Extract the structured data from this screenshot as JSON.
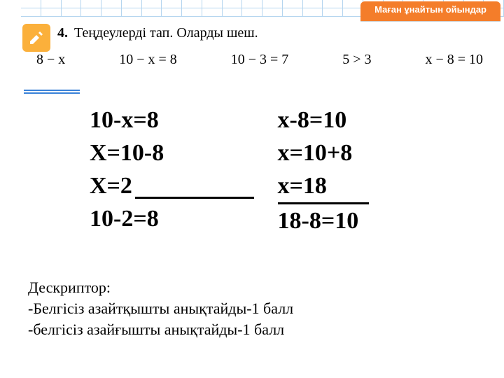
{
  "topstrip": {
    "grid_color": "#b5d5ef",
    "cell_count": 24,
    "pill_label": "Маған ұнайтын ойындар",
    "pill_bg": "#f47d2a"
  },
  "textbook": {
    "icon_bg": "#fbb03b",
    "icon_fg": "#ffffff",
    "number": "4.",
    "title": "Теңдеулерді тап. Оларды шеш.",
    "expressions": [
      "8 − x",
      "10 − x = 8",
      "10 − 3 = 7",
      "5 > 3",
      "x − 8 = 10"
    ],
    "rule_color": "#3a82d8"
  },
  "work": {
    "col1": {
      "l1": "10-х=8",
      "l2": "Х=10-8",
      "l3": "Х=2",
      "l4": "10-2=8"
    },
    "col2": {
      "l1": "х-8=10",
      "l2": "х=10+8",
      "l3": " х=18",
      "l4": "18-8=10"
    }
  },
  "descriptor": {
    "title": "Дескриптор:",
    "line1": "-Белгісіз азайтқышты анықтайды-1 балл",
    "line2": "-белгісіз азайғышты анықтайды-1 балл"
  }
}
